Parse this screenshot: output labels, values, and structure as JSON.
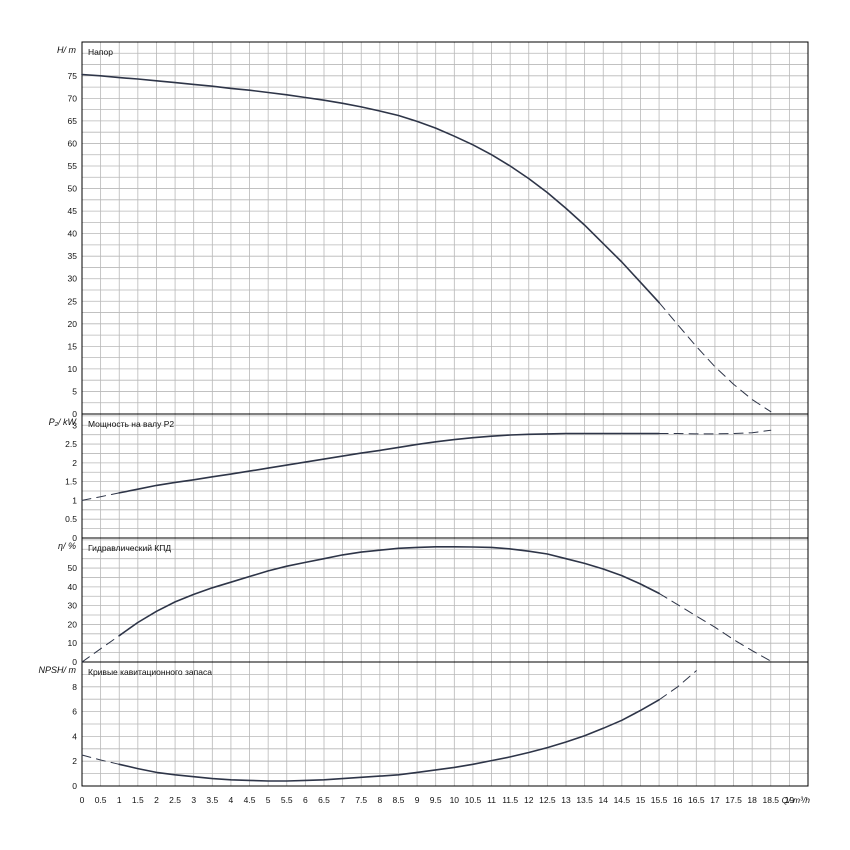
{
  "chart_data": [
    {
      "type": "line",
      "title": "Напор",
      "ylabel": "H/ m",
      "ylim": [
        0,
        82.5
      ],
      "yticks": [
        "0",
        "5",
        "10",
        "15",
        "20",
        "25",
        "30",
        "35",
        "40",
        "45",
        "50",
        "55",
        "60",
        "65",
        "70",
        "75"
      ],
      "grid": true,
      "series": [
        {
          "style": "solid",
          "x": [
            0,
            0.5,
            1,
            1.5,
            2,
            2.5,
            3,
            3.5,
            4,
            4.5,
            5,
            5.5,
            6,
            6.5,
            7,
            7.5,
            8,
            8.5,
            9,
            9.5,
            10,
            10.5,
            11,
            11.5,
            12,
            12.5,
            13,
            13.5,
            14,
            14.5,
            15,
            15.5
          ],
          "y": [
            75.3,
            75.0,
            74.6,
            74.3,
            73.9,
            73.5,
            73.1,
            72.7,
            72.2,
            71.8,
            71.3,
            70.8,
            70.2,
            69.6,
            68.9,
            68.1,
            67.2,
            66.2,
            64.9,
            63.4,
            61.6,
            59.7,
            57.5,
            55.0,
            52.2,
            49.1,
            45.6,
            41.9,
            37.8,
            33.7,
            29.2,
            24.7
          ]
        },
        {
          "style": "dashed",
          "x": [
            15.5,
            16,
            16.5,
            17,
            17.5,
            18,
            18.5
          ],
          "y": [
            24.7,
            19.8,
            15.0,
            10.5,
            6.6,
            3.2,
            0.5
          ]
        }
      ]
    },
    {
      "type": "line",
      "title": "Мощность на валу P2",
      "ylabel": "P₂/ kW",
      "ylim": [
        0,
        3.3
      ],
      "yticks": [
        "0",
        "0.5",
        "1",
        "1.5",
        "2",
        "2.5",
        "3"
      ],
      "grid": true,
      "series": [
        {
          "style": "dashed",
          "x": [
            0,
            0.5,
            1
          ],
          "y": [
            1.0,
            1.1,
            1.2
          ]
        },
        {
          "style": "solid",
          "x": [
            1,
            1.5,
            2,
            2.5,
            3,
            3.5,
            4,
            4.5,
            5,
            5.5,
            6,
            6.5,
            7,
            7.5,
            8,
            8.5,
            9,
            9.5,
            10,
            10.5,
            11,
            11.5,
            12,
            12.5,
            13,
            13.5,
            14,
            14.5,
            15,
            15.5
          ],
          "y": [
            1.2,
            1.3,
            1.4,
            1.48,
            1.55,
            1.63,
            1.7,
            1.78,
            1.86,
            1.94,
            2.02,
            2.1,
            2.18,
            2.26,
            2.33,
            2.41,
            2.49,
            2.56,
            2.62,
            2.67,
            2.71,
            2.74,
            2.76,
            2.77,
            2.78,
            2.78,
            2.78,
            2.78,
            2.78,
            2.78
          ]
        },
        {
          "style": "dashed",
          "x": [
            15.5,
            16,
            16.5,
            17,
            17.5,
            18,
            18.5
          ],
          "y": [
            2.78,
            2.78,
            2.77,
            2.77,
            2.78,
            2.8,
            2.87
          ]
        }
      ]
    },
    {
      "type": "line",
      "title": "Гидравлический КПД",
      "ylabel": "η/ %",
      "ylim": [
        0,
        66
      ],
      "yticks": [
        "0",
        "10",
        "20",
        "30",
        "40",
        "50"
      ],
      "grid": true,
      "series": [
        {
          "style": "dashed",
          "x": [
            0,
            0.5,
            1
          ],
          "y": [
            0,
            7,
            14
          ]
        },
        {
          "style": "solid",
          "x": [
            1,
            1.5,
            2,
            2.5,
            3,
            3.5,
            4,
            4.5,
            5,
            5.5,
            6,
            6.5,
            7,
            7.5,
            8,
            8.5,
            9,
            9.5,
            10,
            10.5,
            11,
            11.5,
            12,
            12.5,
            13,
            13.5,
            14,
            14.5,
            15,
            15.5
          ],
          "y": [
            14,
            21,
            27,
            32,
            36,
            39.5,
            42.5,
            45.5,
            48.5,
            51,
            53,
            55,
            57,
            58.5,
            59.5,
            60.5,
            61,
            61.3,
            61.3,
            61.2,
            61,
            60.2,
            59,
            57.5,
            55,
            52.5,
            49.5,
            46,
            41.5,
            36.5
          ]
        },
        {
          "style": "dashed",
          "x": [
            15.5,
            16,
            16.5,
            17,
            17.5,
            18,
            18.5
          ],
          "y": [
            36.5,
            30.5,
            24.5,
            18.5,
            12,
            6,
            0.5
          ]
        }
      ]
    },
    {
      "type": "line",
      "title": "Кривые кавитационного запаса",
      "ylabel": "NPSH/ m",
      "ylim": [
        0,
        10
      ],
      "yticks": [
        "0",
        "2",
        "4",
        "6",
        "8"
      ],
      "grid": true,
      "series": [
        {
          "style": "dashed",
          "x": [
            0,
            0.5,
            1
          ],
          "y": [
            2.5,
            2.1,
            1.75
          ]
        },
        {
          "style": "solid",
          "x": [
            1,
            1.5,
            2,
            2.5,
            3,
            3.5,
            4,
            4.5,
            5,
            5.5,
            6,
            6.5,
            7,
            7.5,
            8,
            8.5,
            9,
            9.5,
            10,
            10.5,
            11,
            11.5,
            12,
            12.5,
            13,
            13.5,
            14,
            14.5,
            15,
            15.5
          ],
          "y": [
            1.75,
            1.4,
            1.1,
            0.9,
            0.75,
            0.6,
            0.5,
            0.45,
            0.4,
            0.4,
            0.45,
            0.5,
            0.6,
            0.7,
            0.8,
            0.9,
            1.1,
            1.3,
            1.5,
            1.75,
            2.05,
            2.35,
            2.7,
            3.1,
            3.55,
            4.05,
            4.65,
            5.3,
            6.1,
            6.95
          ]
        },
        {
          "style": "dashed",
          "x": [
            15.5,
            16,
            16.5
          ],
          "y": [
            6.95,
            8.0,
            9.3
          ]
        }
      ]
    }
  ],
  "x_axis": {
    "label": "Q/ m³/h",
    "range": [
      0,
      19.5
    ],
    "ticks": [
      "0",
      "0.5",
      "1",
      "1.5",
      "2",
      "2.5",
      "3",
      "3.5",
      "4",
      "4.5",
      "5",
      "5.5",
      "6",
      "6.5",
      "7",
      "7.5",
      "8",
      "8.5",
      "9",
      "9.5",
      "10",
      "10.5",
      "11",
      "11.5",
      "12",
      "12.5",
      "13",
      "13.5",
      "14",
      "14.5",
      "15",
      "15.5",
      "16",
      "16.5",
      "17",
      "17.5",
      "18",
      "18.5",
      "19"
    ]
  },
  "colors": {
    "curve": "#2e3548",
    "grid": "#b8b8b8",
    "frame": "#000000"
  }
}
